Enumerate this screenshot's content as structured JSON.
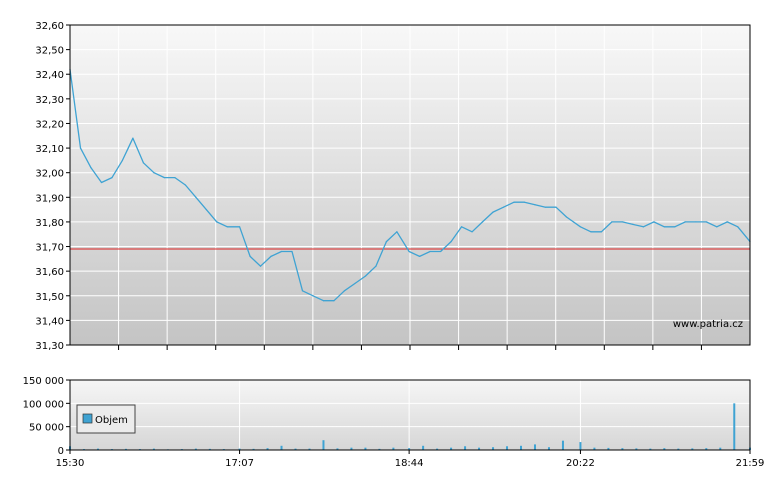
{
  "watermark": "www.patria.cz",
  "chart_data": [
    {
      "type": "line",
      "title": "",
      "xlabel": "",
      "ylabel": "",
      "ylim": [
        31.3,
        32.6
      ],
      "yticks": [
        "32,60",
        "32,50",
        "32,40",
        "32,30",
        "32,20",
        "32,10",
        "32,00",
        "31,90",
        "31,80",
        "31,70",
        "31,60",
        "31,50",
        "31,40",
        "31,30"
      ],
      "grid": true,
      "reference_line": {
        "value": 31.69,
        "color": "#dd2222"
      },
      "series_color": "#3fa3d3",
      "series": [
        {
          "x": [
            "15:30",
            "15:36",
            "15:42",
            "15:48",
            "15:54",
            "16:00",
            "16:06",
            "16:12",
            "16:18",
            "16:24",
            "16:30",
            "16:36",
            "16:42",
            "16:48",
            "16:54",
            "17:00",
            "17:07",
            "17:13",
            "17:19",
            "17:25",
            "17:31",
            "17:37",
            "17:43",
            "17:49",
            "17:55",
            "18:01",
            "18:07",
            "18:13",
            "18:19",
            "18:25",
            "18:31",
            "18:37",
            "18:44",
            "18:50",
            "18:56",
            "19:02",
            "19:08",
            "19:14",
            "19:20",
            "19:26",
            "19:32",
            "19:38",
            "19:44",
            "19:50",
            "19:56",
            "20:02",
            "20:08",
            "20:14",
            "20:22",
            "20:28",
            "20:34",
            "20:40",
            "20:46",
            "20:52",
            "20:58",
            "21:04",
            "21:10",
            "21:16",
            "21:22",
            "21:28",
            "21:34",
            "21:40",
            "21:46",
            "21:52",
            "21:59"
          ],
          "y": [
            32.42,
            32.1,
            32.02,
            31.96,
            31.98,
            32.05,
            32.14,
            32.04,
            32.0,
            31.98,
            31.98,
            31.95,
            31.9,
            31.85,
            31.8,
            31.78,
            31.78,
            31.66,
            31.62,
            31.66,
            31.68,
            31.68,
            31.52,
            31.5,
            31.48,
            31.48,
            31.52,
            31.55,
            31.58,
            31.62,
            31.72,
            31.76,
            31.68,
            31.66,
            31.68,
            31.68,
            31.72,
            31.78,
            31.76,
            31.8,
            31.84,
            31.86,
            31.88,
            31.88,
            31.87,
            31.86,
            31.86,
            31.82,
            31.78,
            31.76,
            31.76,
            31.8,
            31.8,
            31.79,
            31.78,
            31.8,
            31.78,
            31.78,
            31.8,
            31.8,
            31.8,
            31.78,
            31.8,
            31.78,
            31.72
          ]
        }
      ]
    },
    {
      "type": "bar",
      "title": "",
      "xlabel": "",
      "ylabel": "",
      "ylim": [
        0,
        150000
      ],
      "yticks": [
        "150 000",
        "100 000",
        "50 000",
        "0"
      ],
      "xticks": [
        "15:30",
        "17:07",
        "18:44",
        "20:22",
        "21:59"
      ],
      "grid": true,
      "legend": "top-left",
      "series_color": "#3fa3d3",
      "series": [
        {
          "name": "Objem",
          "x": [
            "15:30",
            "15:38",
            "15:46",
            "15:54",
            "16:02",
            "16:10",
            "16:18",
            "16:26",
            "16:34",
            "16:42",
            "16:50",
            "16:58",
            "17:07",
            "17:15",
            "17:23",
            "17:31",
            "17:39",
            "17:47",
            "17:55",
            "18:03",
            "18:11",
            "18:19",
            "18:27",
            "18:35",
            "18:44",
            "18:52",
            "19:00",
            "19:08",
            "19:16",
            "19:24",
            "19:32",
            "19:40",
            "19:48",
            "19:56",
            "20:04",
            "20:12",
            "20:22",
            "20:30",
            "20:38",
            "20:46",
            "20:54",
            "21:02",
            "21:10",
            "21:18",
            "21:26",
            "21:34",
            "21:42",
            "21:50",
            "21:59"
          ],
          "values": [
            8000,
            2000,
            3000,
            2000,
            2500,
            2000,
            3000,
            1500,
            2000,
            3000,
            2500,
            2000,
            3000,
            2500,
            4000,
            9000,
            3000,
            3000,
            21000,
            3500,
            5000,
            5000,
            2500,
            5000,
            4000,
            9000,
            3000,
            5000,
            8000,
            5000,
            6000,
            8000,
            9000,
            12000,
            6000,
            20000,
            17000,
            5000,
            4500,
            4000,
            3500,
            3000,
            4000,
            3000,
            3500,
            4000,
            5000,
            100000,
            5000
          ]
        }
      ]
    }
  ]
}
